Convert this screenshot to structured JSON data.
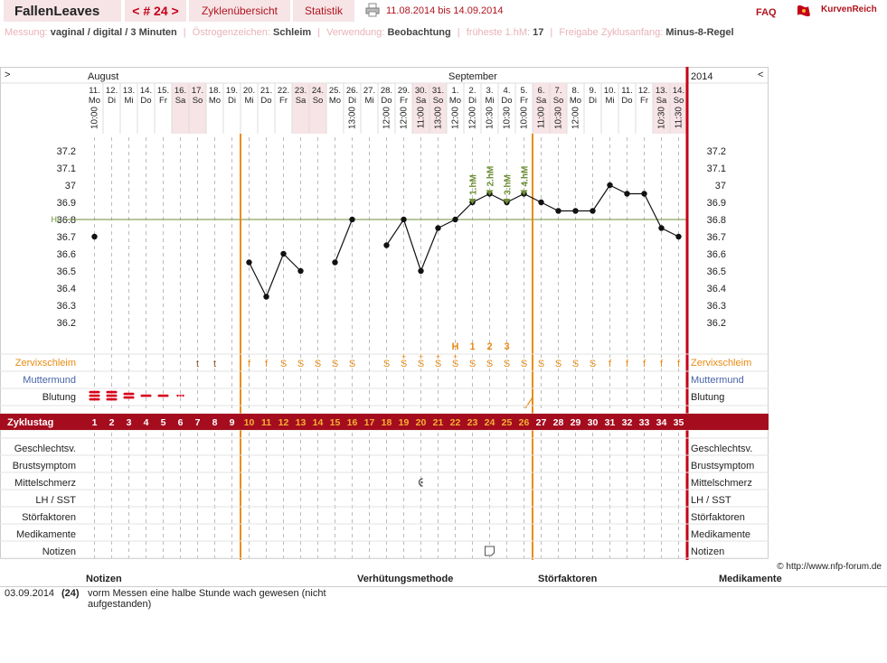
{
  "header": {
    "brand": "FallenLeaves",
    "cycle_nav": "< # 24 >",
    "tabs": [
      "Zyklenübersicht",
      "Statistik"
    ],
    "date_range": "11.08.2014 bis 14.09.2014",
    "faq": "FAQ",
    "logo_text": "KurvenReich"
  },
  "info": [
    {
      "key": "Messung:",
      "value": "vaginal / digital / 3 Minuten"
    },
    {
      "key": "Östrogenzeichen:",
      "value": "Schleim"
    },
    {
      "key": "Verwendung:",
      "value": "Beobachtung"
    },
    {
      "key": "früheste 1.hM:",
      "value": "17"
    },
    {
      "key": "Freigabe Zyklusanfang:",
      "value": "Minus-8-Regel"
    }
  ],
  "chart_data": {
    "type": "line",
    "month_labels": [
      {
        "label": "August",
        "day": 1
      },
      {
        "label": "September",
        "day": 22
      }
    ],
    "year_label": "2014",
    "nav_left": ">",
    "nav_right": "<",
    "dates": [
      "11.",
      "12.",
      "13.",
      "14.",
      "15.",
      "16.",
      "17.",
      "18.",
      "19.",
      "20.",
      "21.",
      "22.",
      "23.",
      "24.",
      "25.",
      "26.",
      "27.",
      "28.",
      "29.",
      "30.",
      "31.",
      "1.",
      "2.",
      "3.",
      "4.",
      "5.",
      "6.",
      "7.",
      "8.",
      "9.",
      "10.",
      "11.",
      "12.",
      "13.",
      "14."
    ],
    "weekdays": [
      "Mo",
      "Di",
      "Mi",
      "Do",
      "Fr",
      "Sa",
      "So",
      "Mo",
      "Di",
      "Mi",
      "Do",
      "Fr",
      "Sa",
      "So",
      "Mo",
      "Di",
      "Mi",
      "Do",
      "Fr",
      "Sa",
      "So",
      "Mo",
      "Di",
      "Mi",
      "Do",
      "Fr",
      "Sa",
      "So",
      "Mo",
      "Di",
      "Mi",
      "Do",
      "Fr",
      "Sa",
      "So"
    ],
    "weekend": [
      6,
      7,
      13,
      14,
      20,
      21,
      27,
      28,
      34,
      35
    ],
    "times": [
      "10:00",
      "",
      "",
      "",
      "",
      "",
      "",
      "",
      "",
      "",
      "",
      "",
      "",
      "",
      "",
      "13:00",
      "",
      "12:00",
      "12:00",
      "11:00",
      "13:00",
      "12:00",
      "12:00",
      "10:30",
      "10:30",
      "10:00",
      "11:00",
      "10:30",
      "12:00",
      "",
      "",
      "",
      "",
      "10:30",
      "11:30"
    ],
    "temps": [
      36.7,
      null,
      null,
      null,
      null,
      null,
      null,
      null,
      null,
      36.55,
      36.35,
      36.6,
      36.5,
      null,
      36.55,
      36.8,
      null,
      36.65,
      36.8,
      36.5,
      36.75,
      36.8,
      36.9,
      36.95,
      36.9,
      36.95,
      36.9,
      36.85,
      36.85,
      36.85,
      37.0,
      36.95,
      36.95,
      36.75,
      36.7
    ],
    "ylim": [
      36.2,
      37.2
    ],
    "yticks": [
      "37.2",
      "37.1",
      "37",
      "36.9",
      "36.8",
      "36.7",
      "36.6",
      "36.5",
      "36.4",
      "36.3",
      "36.2"
    ],
    "hl_label": "HL",
    "hl_value": 36.8,
    "hm_markers": [
      {
        "day": 23,
        "label": "1.hM"
      },
      {
        "day": 24,
        "label": "2.hM"
      },
      {
        "day": 25,
        "label": "3.hM"
      },
      {
        "day": 26,
        "label": "4.hM"
      }
    ],
    "vertical_markers": [
      10,
      27
    ],
    "mucus_highpoint": [
      {
        "day": 22,
        "label": "H"
      },
      {
        "day": 23,
        "label": "1"
      },
      {
        "day": 24,
        "label": "2"
      },
      {
        "day": 25,
        "label": "3"
      }
    ],
    "mucus": [
      "",
      "",
      "",
      "",
      "",
      "",
      "t",
      "t",
      "",
      "f",
      "f",
      "S",
      "S",
      "S",
      "S",
      "S",
      "",
      "S",
      "S",
      "S",
      "S",
      "S",
      "S",
      "S",
      "S",
      "S",
      "S",
      "S",
      "S",
      "S",
      "f",
      "f",
      "f",
      "f",
      "f"
    ],
    "mucus_plus": [
      19,
      20,
      21,
      22
    ],
    "bleeding": [
      3,
      3,
      2,
      1,
      1,
      0.5,
      0,
      0,
      0,
      0,
      0,
      0,
      0,
      0,
      0,
      0,
      0,
      0,
      0,
      0,
      0,
      0,
      0,
      0,
      0,
      0,
      0,
      0,
      0,
      0,
      0,
      0,
      0,
      0,
      0
    ],
    "row_labels": {
      "mucus": "Zervixschleim",
      "cervix": "Muttermund",
      "bleeding": "Blutung",
      "cycleday": "Zyklustag",
      "lower": [
        "Geschlechtsv.",
        "Brustsymptom",
        "Mittelschmerz",
        "LH / SST",
        "Störfaktoren",
        "Medikamente",
        "Notizen"
      ]
    },
    "cycle_days": [
      "1",
      "2",
      "3",
      "4",
      "5",
      "6",
      "7",
      "8",
      "9",
      "10",
      "11",
      "12",
      "13",
      "14",
      "15",
      "16",
      "17",
      "18",
      "19",
      "20",
      "21",
      "22",
      "23",
      "24",
      "25",
      "26",
      "27",
      "28",
      "29",
      "30",
      "31",
      "32",
      "33",
      "34",
      "35"
    ],
    "mittelschmerz_day": 20,
    "note_day": 24
  },
  "copyright": "© http://www.nfp-forum.de",
  "notes": {
    "headers": [
      "Notizen",
      "Verhütungsmethode",
      "Störfaktoren",
      "Medikamente"
    ],
    "rows": [
      {
        "date": "03.09.2014",
        "cycle": "(24)",
        "text": "vorm Messen eine halbe Stunde wach gewesen (nicht aufgestanden)"
      }
    ]
  },
  "colors": {
    "accent": "#b0141e",
    "orange": "#e98b13",
    "cycle_bar": "#a50d1f",
    "green": "#6d8f34",
    "weekend": "#f6e4e6",
    "muttermund": "#4863a8"
  }
}
